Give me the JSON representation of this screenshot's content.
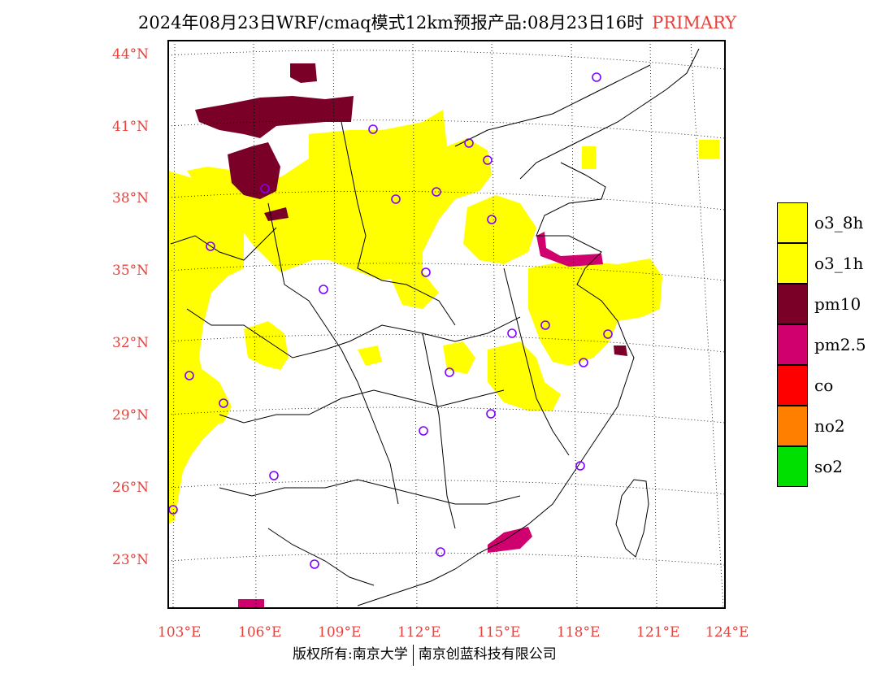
{
  "header": {
    "title": "2024年08月23日WRF/cmaq模式12km预报产品:08月23日16时",
    "run_label": "PRIMARY"
  },
  "map": {
    "lat_ticks": [
      "44°N",
      "41°N",
      "38°N",
      "35°N",
      "32°N",
      "29°N",
      "26°N",
      "23°N"
    ],
    "lon_ticks": [
      "103°E",
      "106°E",
      "109°E",
      "112°E",
      "115°E",
      "118°E",
      "121°E",
      "124°E"
    ],
    "station_marker": "purple-circle"
  },
  "legend": {
    "items": [
      {
        "label": "o3_8h",
        "color": "#ffff00"
      },
      {
        "label": "o3_1h",
        "color": "#ffff00"
      },
      {
        "label": "pm10",
        "color": "#7a0028"
      },
      {
        "label": "pm2.5",
        "color": "#d0006f"
      },
      {
        "label": "co",
        "color": "#ff0000"
      },
      {
        "label": "no2",
        "color": "#ff8000"
      },
      {
        "label": "so2",
        "color": "#00e000"
      }
    ]
  },
  "footer": {
    "left": "版权所有:南京大学",
    "right": "南京创蓝科技有限公司"
  }
}
